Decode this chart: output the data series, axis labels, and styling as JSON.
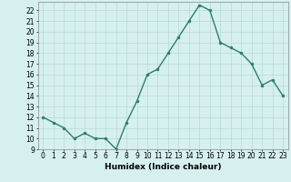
{
  "x": [
    0,
    1,
    2,
    3,
    4,
    5,
    6,
    7,
    8,
    9,
    10,
    11,
    12,
    13,
    14,
    15,
    16,
    17,
    18,
    19,
    20,
    21,
    22,
    23
  ],
  "y": [
    12,
    11.5,
    11,
    10,
    10.5,
    10,
    10,
    9,
    11.5,
    13.5,
    16,
    16.5,
    18,
    19.5,
    21,
    22.5,
    22,
    19,
    18.5,
    18,
    17,
    15,
    15.5,
    14
  ],
  "line_color": "#2e7d6e",
  "marker": "o",
  "marker_size": 2,
  "bg_color": "#d6f0f0",
  "grid_color": "#b8d8d8",
  "xlabel": "Humidex (Indice chaleur)",
  "xlim": [
    -0.5,
    23.5
  ],
  "ylim": [
    9,
    22.8
  ],
  "yticks": [
    9,
    10,
    11,
    12,
    13,
    14,
    15,
    16,
    17,
    18,
    19,
    20,
    21,
    22
  ],
  "xticks": [
    0,
    1,
    2,
    3,
    4,
    5,
    6,
    7,
    8,
    9,
    10,
    11,
    12,
    13,
    14,
    15,
    16,
    17,
    18,
    19,
    20,
    21,
    22,
    23
  ],
  "tick_fontsize": 5.5,
  "xlabel_fontsize": 6.5,
  "line_width": 1.0
}
